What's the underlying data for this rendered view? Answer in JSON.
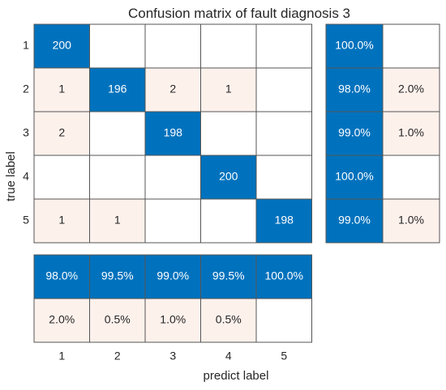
{
  "chart_data": {
    "type": "heatmap",
    "title": "Confusion matrix of fault diagnosis 3",
    "xlabel": "predict label",
    "ylabel": "true label",
    "x_categories": [
      "1",
      "2",
      "3",
      "4",
      "5"
    ],
    "y_categories": [
      "1",
      "2",
      "3",
      "4",
      "5"
    ],
    "matrix": [
      [
        200,
        0,
        0,
        0,
        0
      ],
      [
        1,
        196,
        2,
        1,
        0
      ],
      [
        2,
        0,
        198,
        0,
        0
      ],
      [
        0,
        0,
        0,
        200,
        0
      ],
      [
        1,
        1,
        0,
        0,
        198
      ]
    ],
    "row_summary": {
      "correct": [
        "100.0%",
        "98.0%",
        "99.0%",
        "100.0%",
        "99.0%"
      ],
      "incorrect": [
        "",
        "2.0%",
        "1.0%",
        "",
        "1.0%"
      ]
    },
    "column_summary": {
      "correct": [
        "98.0%",
        "99.5%",
        "99.0%",
        "99.5%",
        "100.0%"
      ],
      "incorrect": [
        "2.0%",
        "0.5%",
        "1.0%",
        "0.5%",
        ""
      ]
    },
    "colors": {
      "diagonal": "#0072bd",
      "off_diagonal": "#fdf1ec",
      "empty": "#ffffff",
      "grid": "#555555",
      "text_dark": "#262626",
      "text_light": "#ffffff"
    }
  }
}
